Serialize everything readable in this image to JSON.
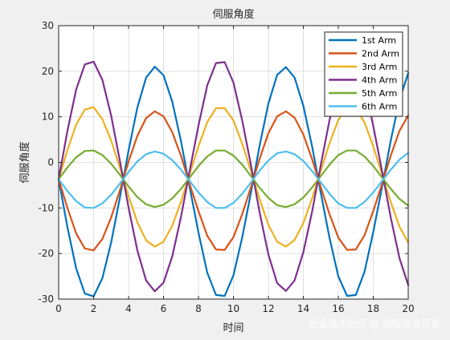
{
  "chart_data": {
    "type": "line",
    "title": "伺服角度",
    "xlabel": "时间",
    "ylabel": "伺服角度",
    "xlim": [
      0,
      20
    ],
    "ylim": [
      -30,
      30
    ],
    "xticks": [
      0,
      2,
      4,
      6,
      8,
      10,
      12,
      14,
      16,
      18,
      20
    ],
    "yticks": [
      -30,
      -20,
      -10,
      0,
      10,
      20,
      30
    ],
    "grid": true,
    "legend_position": "top-right",
    "x_step": 0.5,
    "series": [
      {
        "name": "1st Arm",
        "color": "#0072bd",
        "values": [
          -3.7,
          -14.2,
          -23.3,
          -28.8,
          -29.4,
          -25.4,
          -17.6,
          -7.8,
          2.6,
          12.0,
          18.6,
          21.0,
          19.1,
          13.3,
          4.6,
          -5.5,
          -15.4,
          -24.2,
          -29.1,
          -29.3,
          -24.8,
          -16.5,
          -6.6,
          3.7,
          12.9,
          19.2,
          20.9,
          18.6,
          12.4,
          3.5,
          -6.8,
          -16.6,
          -25.0,
          -29.3,
          -29.1,
          -24.0,
          -15.3,
          -5.4,
          4.8,
          13.7,
          19.6
        ]
      },
      {
        "name": "2nd Arm",
        "color": "#d95319",
        "values": [
          -3.7,
          -10.0,
          -15.6,
          -18.9,
          -19.3,
          -16.8,
          -12.1,
          -6.2,
          0.2,
          5.8,
          9.7,
          11.2,
          10.1,
          6.6,
          1.4,
          -4.8,
          -10.7,
          -16.1,
          -19.1,
          -19.2,
          -16.4,
          -11.4,
          -5.4,
          0.8,
          6.4,
          10.1,
          11.2,
          9.8,
          6.1,
          0.7,
          -5.5,
          -11.4,
          -16.5,
          -19.2,
          -19.1,
          -16.0,
          -10.7,
          -4.7,
          1.5,
          6.9,
          10.3
        ]
      },
      {
        "name": "3rd Arm",
        "color": "#edb120",
        "values": [
          -3.7,
          2.7,
          8.3,
          11.6,
          12.1,
          9.5,
          4.8,
          -1.1,
          -7.4,
          -13.1,
          -17.1,
          -18.5,
          -17.4,
          -13.9,
          -8.6,
          -2.5,
          3.5,
          8.8,
          11.9,
          11.9,
          9.2,
          4.1,
          -1.9,
          -8.1,
          -13.7,
          -17.4,
          -18.5,
          -17.0,
          -13.3,
          -7.9,
          -1.8,
          4.2,
          9.3,
          12.0,
          11.8,
          8.8,
          3.5,
          -2.6,
          -8.7,
          -14.1,
          -17.6
        ]
      },
      {
        "name": "4th Arm",
        "color": "#7e2f8e",
        "values": [
          -3.7,
          6.9,
          16.0,
          21.5,
          22.1,
          18.1,
          10.3,
          0.4,
          -9.9,
          -19.3,
          -25.9,
          -28.3,
          -26.4,
          -20.6,
          -11.9,
          -1.8,
          8.1,
          16.9,
          21.8,
          22.0,
          17.5,
          9.2,
          -0.6,
          -11.0,
          -20.2,
          -26.5,
          -28.2,
          -25.9,
          -19.7,
          -10.8,
          -0.5,
          9.3,
          17.7,
          22.0,
          21.8,
          16.7,
          8.0,
          -1.9,
          -12.1,
          -21.0,
          -26.9
        ]
      },
      {
        "name": "5th Arm",
        "color": "#77ac30",
        "values": [
          -3.7,
          -1.1,
          1.1,
          2.5,
          2.6,
          1.6,
          -0.3,
          -2.7,
          -5.3,
          -7.6,
          -9.2,
          -9.8,
          -9.3,
          -7.9,
          -5.8,
          -3.3,
          -0.8,
          1.3,
          2.6,
          2.6,
          1.5,
          -0.5,
          -3.0,
          -5.6,
          -7.8,
          -9.4,
          -9.8,
          -9.2,
          -7.7,
          -5.5,
          -3.0,
          -0.5,
          1.6,
          2.6,
          2.6,
          1.3,
          -0.8,
          -3.3,
          -5.8,
          -8.0,
          -9.5
        ]
      },
      {
        "name": "6th Arm",
        "color": "#4dbeee",
        "values": [
          -3.7,
          -6.3,
          -8.5,
          -9.9,
          -10.0,
          -9.0,
          -7.1,
          -4.7,
          -2.1,
          0.2,
          1.8,
          2.4,
          1.9,
          0.5,
          -1.6,
          -4.1,
          -6.6,
          -8.7,
          -10.0,
          -10.0,
          -8.9,
          -6.9,
          -4.4,
          -1.8,
          0.4,
          2.0,
          2.4,
          1.8,
          0.3,
          -1.9,
          -4.4,
          -6.9,
          -9.0,
          -10.0,
          -10.0,
          -8.7,
          -6.6,
          -4.1,
          -1.6,
          0.6,
          2.1
        ]
      }
    ],
    "watermark": "掘金技术社区 @ 编程技术开发"
  }
}
